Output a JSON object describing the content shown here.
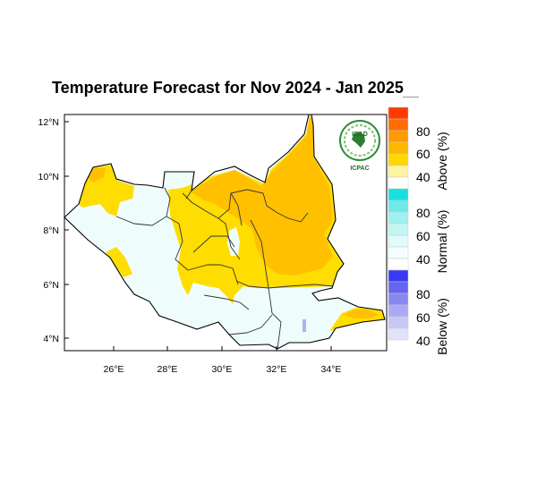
{
  "title": "Temperature Forecast for Nov 2024 - Jan 2025",
  "map": {
    "lat_ticks": [
      "12°N",
      "10°N",
      "8°N",
      "6°N",
      "4°N"
    ],
    "lon_ticks": [
      "26°E",
      "28°E",
      "30°E",
      "32°E",
      "34°E"
    ],
    "lon_range": [
      24.0,
      36.0
    ],
    "lat_range": [
      3.5,
      12.5
    ],
    "logo": {
      "top_text": "IGAD",
      "bottom_text": "ICPAC"
    }
  },
  "legend": {
    "groups": [
      {
        "label": "Above (%)",
        "tick_labels": [
          "80",
          "60",
          "40"
        ],
        "colors": [
          "#ff3a00",
          "#ff6d00",
          "#ff9a00",
          "#ffb800",
          "#ffd800",
          "#fff4a0"
        ]
      },
      {
        "label": "Normal (%)",
        "tick_labels": [
          "80",
          "60",
          "40"
        ],
        "colors": [
          "#19e0e0",
          "#6eeaea",
          "#9ff0f0",
          "#c4f5f5",
          "#e0fbfb",
          "#f4fefe"
        ]
      },
      {
        "label": "Below (%)",
        "tick_labels": [
          "80",
          "60",
          "40"
        ],
        "colors": [
          "#3a3af5",
          "#6464f0",
          "#8888ef",
          "#aaaaf2",
          "#c8c8f6",
          "#e2e2fa"
        ]
      }
    ]
  },
  "colors": {
    "above_light": "#ffdd00",
    "above_dark": "#ffc000",
    "normal": "#eefcfc",
    "below": "#b0b0f0"
  }
}
